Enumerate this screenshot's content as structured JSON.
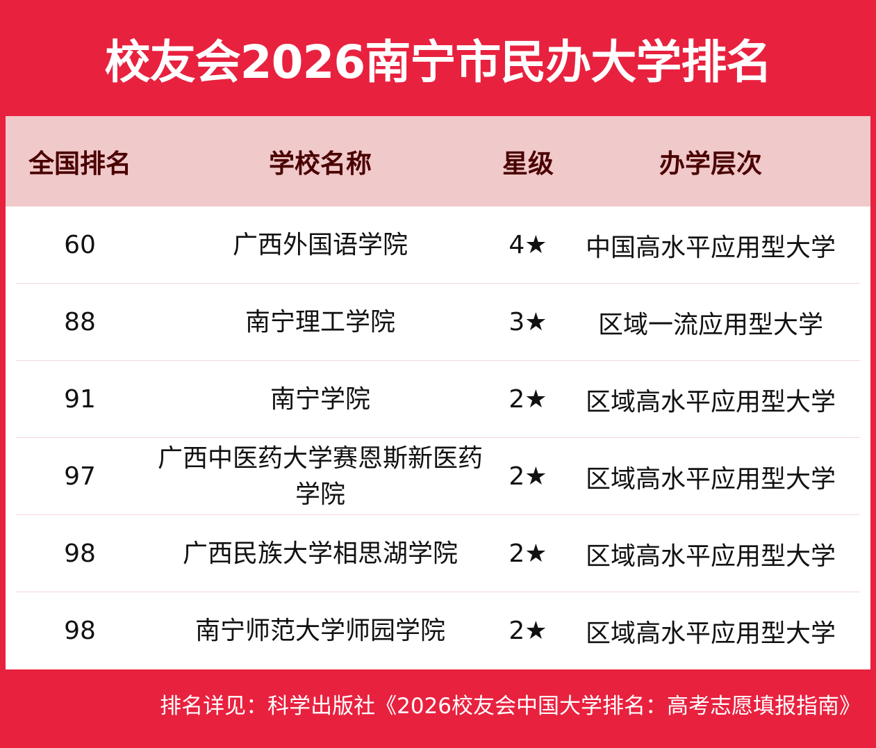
{
  "title": "校友会2026南宁市民办大学排名",
  "columns": [
    "全国排名",
    "学校名称",
    "星级",
    "办学层次"
  ],
  "rows": [
    {
      "rank": "60",
      "name": "广西外国语学院",
      "stars": "4★",
      "level": "中国高水平应用型大学"
    },
    {
      "rank": "88",
      "name": "南宁理工学院",
      "stars": "3★",
      "level": "区域一流应用型大学"
    },
    {
      "rank": "91",
      "name": "南宁学院",
      "stars": "2★",
      "level": "区域高水平应用型大学"
    },
    {
      "rank": "97",
      "name": "广西中医药大学赛恩斯新医药学院",
      "stars": "2★",
      "level": "区域高水平应用型大学"
    },
    {
      "rank": "98",
      "name": "广西民族大学相思湖学院",
      "stars": "2★",
      "level": "区域高水平应用型大学"
    },
    {
      "rank": "98",
      "name": "南宁师范大学师园学院",
      "stars": "2★",
      "level": "区域高水平应用型大学"
    }
  ],
  "footer": "排名详见：科学出版社《2026校友会中国大学排名：高考志愿填报指南》",
  "colors": {
    "brand_red": "#e8213f",
    "header_bg": "#f0c9ca",
    "header_text": "#4a0000"
  }
}
